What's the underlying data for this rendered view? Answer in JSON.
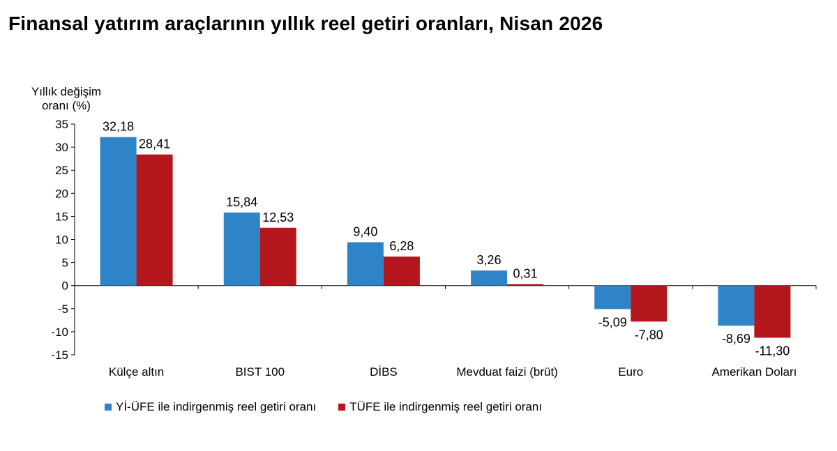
{
  "title": "Finansal yatırım araçlarının yıllık reel getiri oranları, Nisan 2026",
  "colors": {
    "series1": "#2E84C6",
    "series2": "#B3161B"
  },
  "chart_data": {
    "type": "bar",
    "ylabel_lines": [
      "Yıllık değişim",
      "oranı (%)"
    ],
    "categories": [
      "Külçe altın",
      "BIST 100",
      "DİBS",
      "Mevduat faizi (brüt)",
      "Euro",
      "Amerikan Doları"
    ],
    "series": [
      {
        "name": "Yİ-ÜFE ile indirgenmiş reel getiri oranı",
        "values": [
          32.18,
          15.84,
          9.4,
          3.26,
          -5.09,
          -8.69
        ],
        "labels": [
          "32,18",
          "15,84",
          "9,40",
          "3,26",
          "-5,09",
          "-8,69"
        ]
      },
      {
        "name": "TÜFE ile indirgenmiş reel getiri oranı",
        "values": [
          28.41,
          12.53,
          6.28,
          0.31,
          -7.8,
          -11.3
        ],
        "labels": [
          "28,41",
          "12,53",
          "6,28",
          "0,31",
          "-7,80",
          "-11,30"
        ]
      }
    ],
    "ylim": [
      -15,
      35
    ],
    "yticks": [
      35,
      30,
      25,
      20,
      15,
      10,
      5,
      0,
      -5,
      -10,
      -15
    ],
    "grid": false,
    "legend": "bottom"
  }
}
